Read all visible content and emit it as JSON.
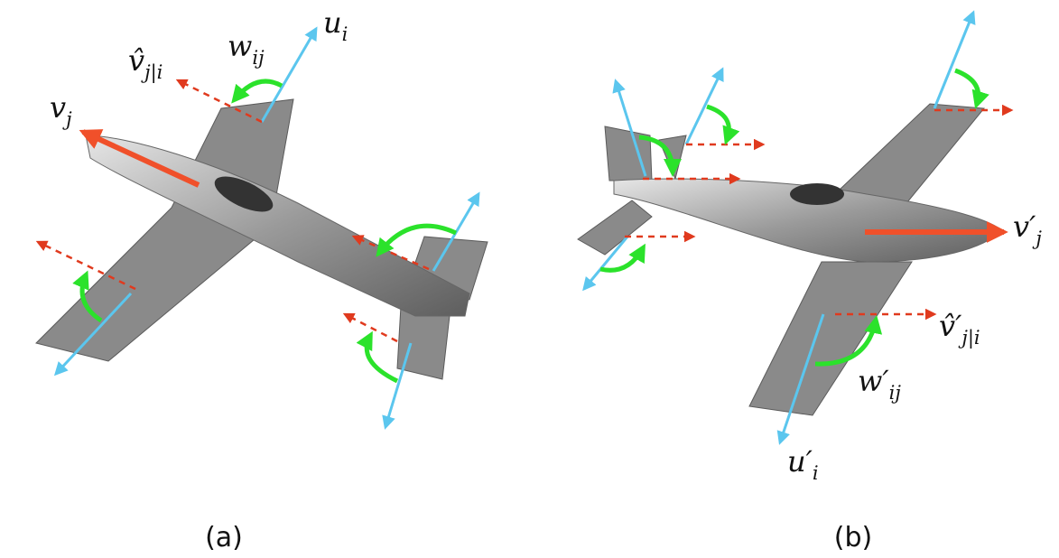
{
  "panels": [
    {
      "caption": "(a)",
      "labels": [
        {
          "base": "v̂",
          "sub": "j|i"
        },
        {
          "base": "w",
          "sub": "ij"
        },
        {
          "base": "u",
          "sub": "i"
        },
        {
          "base": "v",
          "sub": "j"
        }
      ]
    },
    {
      "caption": "(b)",
      "labels": [
        {
          "base": "v′",
          "sub": "j"
        },
        {
          "base": "v̂′",
          "sub": "j|i"
        },
        {
          "base": "w′",
          "sub": "ij"
        },
        {
          "base": "u′",
          "sub": "i"
        }
      ]
    }
  ]
}
